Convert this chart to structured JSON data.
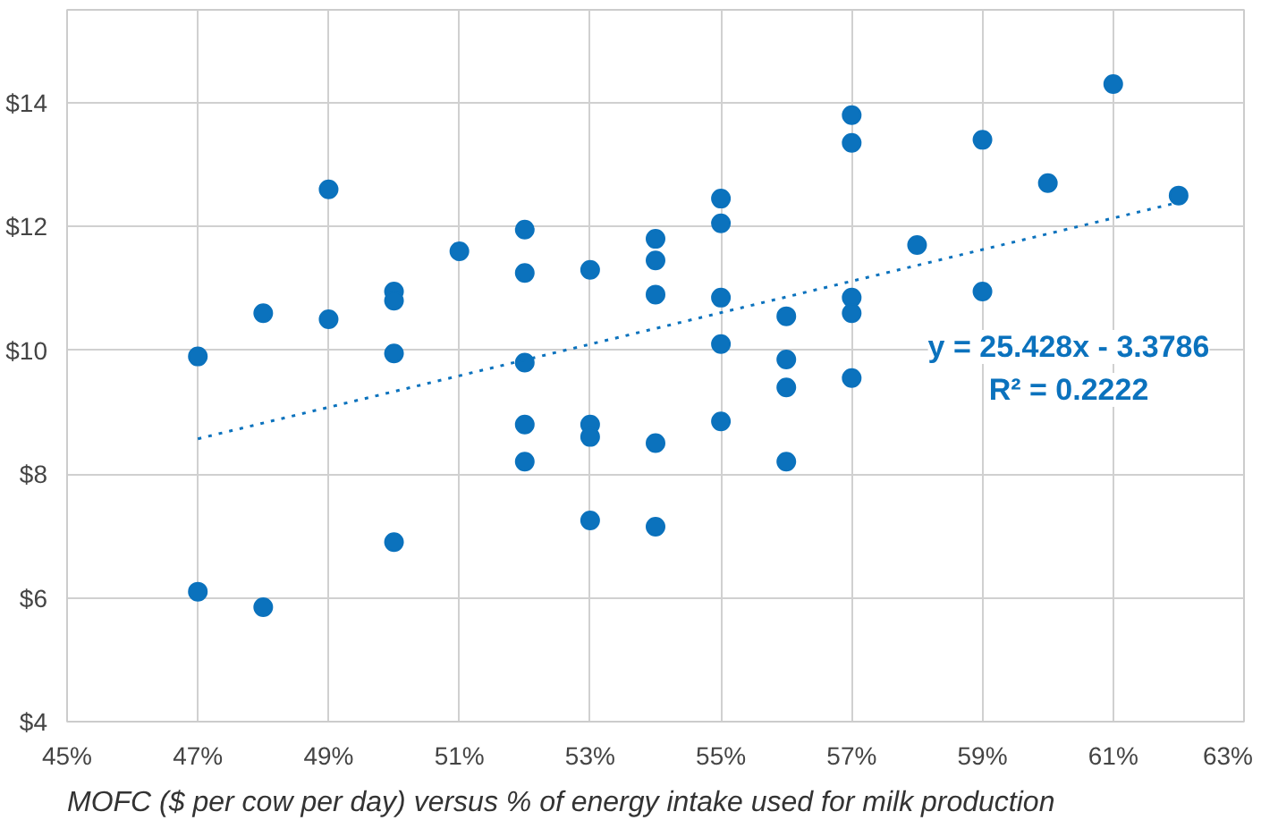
{
  "chart_data": {
    "type": "scatter",
    "title": "MOFC ($ per cow per day) versus % of energy intake used for milk production",
    "series": [
      {
        "color": "#0b72bd",
        "marker": "circle",
        "x": [
          47,
          47,
          48,
          48,
          49,
          49,
          50,
          50,
          50,
          50,
          51,
          52,
          52,
          52,
          52,
          52,
          53,
          53,
          53,
          53,
          54,
          54,
          54,
          54,
          54,
          55,
          55,
          55,
          55,
          55,
          56,
          56,
          56,
          56,
          57,
          57,
          57,
          57,
          57,
          58,
          59,
          59,
          60,
          61,
          62
        ],
        "values": [
          9.9,
          6.1,
          10.6,
          5.85,
          12.6,
          10.5,
          10.95,
          10.8,
          9.95,
          6.9,
          11.6,
          11.95,
          11.25,
          9.8,
          8.8,
          8.2,
          11.3,
          8.8,
          8.6,
          7.25,
          11.8,
          11.45,
          10.9,
          8.5,
          7.15,
          12.45,
          12.05,
          10.85,
          10.1,
          8.85,
          10.55,
          9.85,
          9.4,
          8.2,
          13.8,
          13.35,
          10.85,
          10.6,
          9.55,
          11.7,
          13.4,
          10.95,
          12.7,
          14.3,
          12.5
        ]
      },
      {
        "type": "line",
        "color": "#0b72bd",
        "line_style": "dotted",
        "x": [
          47,
          62
        ],
        "values": [
          8.57,
          12.39
        ]
      }
    ],
    "annotations": [
      "y = 25.428x - 3.3786",
      "R² = 0.2222"
    ],
    "xlim": [
      45,
      63
    ],
    "ylim": [
      4,
      15.5
    ],
    "xticks": [
      {
        "value": 45,
        "label": "45%"
      },
      {
        "value": 47,
        "label": "47%"
      },
      {
        "value": 49,
        "label": "49%"
      },
      {
        "value": 51,
        "label": "51%"
      },
      {
        "value": 53,
        "label": "53%"
      },
      {
        "value": 55,
        "label": "55%"
      },
      {
        "value": 57,
        "label": "57%"
      },
      {
        "value": 59,
        "label": "59%"
      },
      {
        "value": 61,
        "label": "61%"
      },
      {
        "value": 63,
        "label": "63%"
      }
    ],
    "yticks": [
      {
        "value": 4,
        "label": "$4"
      },
      {
        "value": 6,
        "label": "$6"
      },
      {
        "value": 8,
        "label": "$8"
      },
      {
        "value": 10,
        "label": "$10"
      },
      {
        "value": 12,
        "label": "$12"
      },
      {
        "value": 14,
        "label": "$14"
      }
    ],
    "grid": true
  }
}
